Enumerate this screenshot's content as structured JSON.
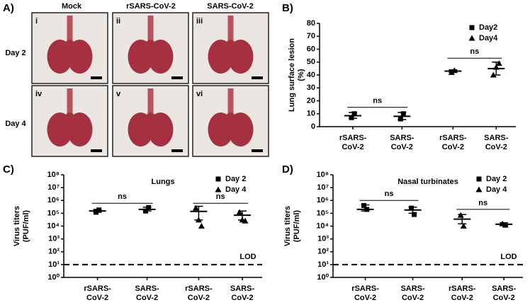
{
  "panel_a": {
    "label": "A)",
    "columns": [
      "Mock",
      "rSARS-CoV-2",
      "SARS-CoV-2"
    ],
    "rows": [
      "Day 2",
      "Day 4"
    ],
    "panels": [
      "i",
      "ii",
      "iii",
      "iv",
      "v",
      "vi"
    ]
  },
  "chart_data": [
    {
      "type": "dot",
      "label": "B)",
      "y_label": [
        "Lung surface lesion",
        "(%)"
      ],
      "categories": [
        "rSARS-CoV-2",
        "SARS-CoV-2",
        "rSARS-CoV-2",
        "SARS-CoV-2"
      ],
      "series": [
        {
          "name": "Day2",
          "marker": "square",
          "color": "#000000",
          "means": [
            8.5,
            8,
            null,
            null
          ],
          "lower": [
            6.5,
            5.5,
            null,
            null
          ],
          "upper": [
            11,
            11,
            null,
            null
          ],
          "points": [
            [
              7,
              10
            ],
            [
              6,
              10
            ],
            null,
            null
          ]
        },
        {
          "name": "Day4",
          "marker": "triangle",
          "color": "#000000",
          "means": [
            null,
            null,
            43,
            45
          ],
          "lower": [
            null,
            null,
            42,
            40
          ],
          "upper": [
            null,
            null,
            44,
            50
          ],
          "points": [
            null,
            null,
            [
              42,
              43.5
            ],
            [
              40,
              46,
              49
            ]
          ]
        }
      ],
      "ylim": [
        0,
        80
      ],
      "yticks": [
        0,
        10,
        20,
        30,
        40,
        50,
        60,
        70,
        80
      ],
      "log_scale": false,
      "legend": "upper right",
      "annotations": [
        {
          "text": "ns",
          "from": 0,
          "to": 1,
          "y": 15
        },
        {
          "text": "ns",
          "from": 2,
          "to": 3,
          "y": 53
        }
      ]
    },
    {
      "type": "dot",
      "label": "C)",
      "title": "Lungs",
      "y_label": [
        "Virus titers",
        "(PUF/ml)"
      ],
      "categories": [
        "rSARS-CoV-2",
        "SARS-CoV-2",
        "rSARS-CoV-2",
        "SARS-CoV-2"
      ],
      "series": [
        {
          "name": "Day 2",
          "marker": "square",
          "color": "#000000",
          "means": [
            150000,
            200000,
            null,
            null
          ],
          "lower": [
            120000,
            150000,
            null,
            null
          ],
          "upper": [
            200000,
            300000,
            null,
            null
          ],
          "points": [
            [
              120000,
              180000
            ],
            [
              150000,
              280000
            ],
            null,
            null
          ]
        },
        {
          "name": "Day 4",
          "marker": "triangle",
          "color": "#000000",
          "means": [
            null,
            null,
            140000,
            70000
          ],
          "lower": [
            null,
            null,
            30000,
            30000
          ],
          "upper": [
            null,
            null,
            350000,
            150000
          ],
          "points": [
            null,
            null,
            [
              250000,
              30000,
              10000
            ],
            [
              120000,
              30000,
              25000
            ]
          ]
        }
      ],
      "ylim": [
        1,
        100000000
      ],
      "yticks": [
        {
          "value": 1,
          "label": "10⁰"
        },
        {
          "value": 10,
          "label": "10¹"
        },
        {
          "value": 100,
          "label": "10²"
        },
        {
          "value": 1000,
          "label": "10³"
        },
        {
          "value": 10000,
          "label": "10⁴"
        },
        {
          "value": 100000,
          "label": "10⁵"
        },
        {
          "value": 1000000,
          "label": "10⁶"
        },
        {
          "value": 10000000,
          "label": "10⁷"
        },
        {
          "value": 100000000,
          "label": "10⁸"
        }
      ],
      "log_scale": true,
      "legend": "upper right",
      "reference_line": {
        "value": 10,
        "label": "LOD",
        "style": "dashed"
      },
      "annotations": [
        {
          "text": "ns",
          "from": 0,
          "to": 1,
          "y": 600000
        },
        {
          "text": "ns",
          "from": 2,
          "to": 3,
          "y": 600000
        }
      ]
    },
    {
      "type": "dot",
      "label": "D)",
      "title": "Nasal turbinates",
      "y_label": [
        "Virus titers",
        "(PUF/ml)"
      ],
      "categories": [
        "rSARS-CoV-2",
        "SARS-CoV-2",
        "rSARS-CoV-2",
        "SARS-CoV-2"
      ],
      "series": [
        {
          "name": "Day 2",
          "marker": "square",
          "color": "#000000",
          "means": [
            200000,
            180000,
            null,
            null
          ],
          "lower": [
            150000,
            100000,
            null,
            null
          ],
          "upper": [
            450000,
            300000,
            null,
            null
          ],
          "points": [
            [
              400000,
              200000
            ],
            [
              250000,
              80000
            ],
            null,
            null
          ]
        },
        {
          "name": "Day 4",
          "marker": "triangle",
          "color": "#000000",
          "means": [
            null,
            null,
            35000,
            14000
          ],
          "lower": [
            null,
            null,
            15000,
            11000
          ],
          "upper": [
            null,
            null,
            80000,
            18000
          ],
          "points": [
            null,
            null,
            [
              70000,
              10000
            ],
            [
              15000,
              12000
            ]
          ]
        }
      ],
      "ylim": [
        1,
        100000000
      ],
      "yticks": [
        {
          "value": 1,
          "label": "10⁰"
        },
        {
          "value": 10,
          "label": "10¹"
        },
        {
          "value": 100,
          "label": "10²"
        },
        {
          "value": 1000,
          "label": "10³"
        },
        {
          "value": 10000,
          "label": "10⁴"
        },
        {
          "value": 100000,
          "label": "10⁵"
        },
        {
          "value": 1000000,
          "label": "10⁶"
        },
        {
          "value": 10000000,
          "label": "10⁷"
        },
        {
          "value": 100000000,
          "label": "10⁸"
        }
      ],
      "log_scale": true,
      "legend": "upper right",
      "reference_line": {
        "value": 10,
        "label": "LOD",
        "style": "dashed"
      },
      "annotations": [
        {
          "text": "ns",
          "from": 0,
          "to": 1,
          "y": 1000000
        },
        {
          "text": "ns",
          "from": 2,
          "to": 3,
          "y": 200000
        }
      ]
    }
  ]
}
